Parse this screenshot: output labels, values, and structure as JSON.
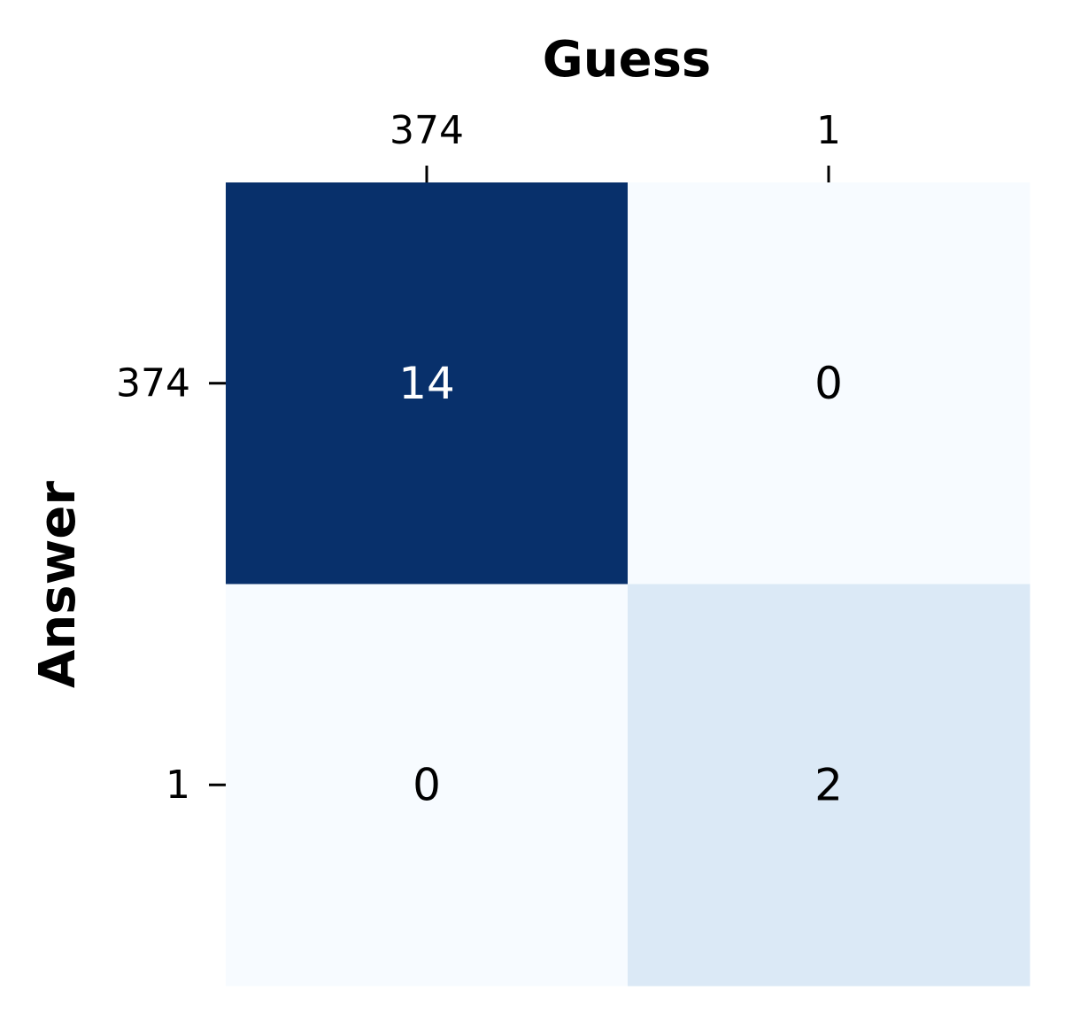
{
  "chart_data": {
    "type": "heatmap",
    "title": "",
    "xlabel": "Guess",
    "ylabel": "Answer",
    "x_categories": [
      "374",
      "1"
    ],
    "y_categories": [
      "374",
      "1"
    ],
    "values": [
      [
        14,
        0
      ],
      [
        0,
        2
      ]
    ],
    "colormap": "Blues",
    "vmin": 0,
    "vmax": 14,
    "x_axis_position": "top",
    "colorbar": false,
    "grid": false,
    "colors": {
      "low": "#f7fbff",
      "high": "#08306b",
      "text_on_dark": "#ffffff",
      "text_on_light": "#000000"
    }
  }
}
